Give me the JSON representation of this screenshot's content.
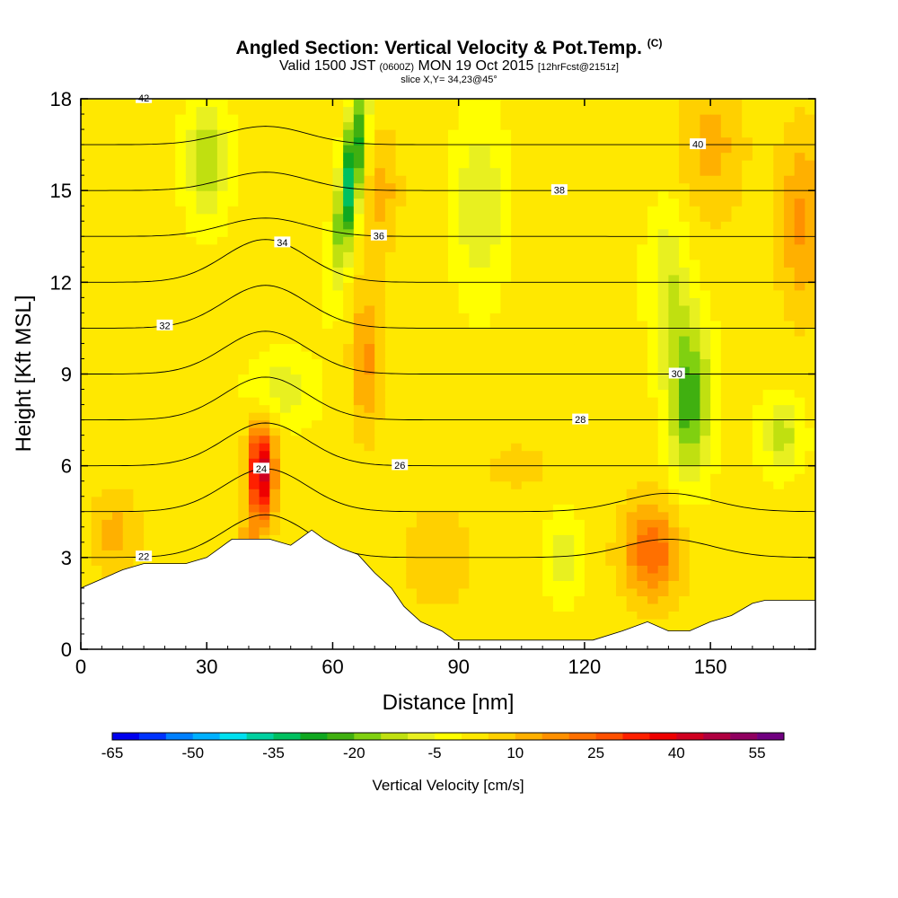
{
  "title": {
    "main": "Angled Section: Vertical Velocity & Pot.Temp.",
    "units": "(C)",
    "valid_prefix": "Valid 1500 JST",
    "valid_z": "(0600Z)",
    "valid_date": "MON 19 Oct 2015",
    "forecast": "[12hrFcst@2151z]",
    "slice": "slice X,Y= 34,23@45°"
  },
  "chart_data": {
    "type": "heatmap",
    "xlabel": "Distance [nm]",
    "ylabel": "Height [Kft MSL]",
    "xlim": [
      0,
      175
    ],
    "ylim": [
      0,
      18
    ],
    "xticks": [
      0,
      30,
      60,
      90,
      120,
      150
    ],
    "yticks": [
      0,
      3,
      6,
      9,
      12,
      15,
      18
    ],
    "colorbar": {
      "title": "Vertical Velocity [cm/s]",
      "min": -65,
      "max": 60,
      "step": 5,
      "labels": [
        -65,
        -50,
        -35,
        -20,
        -5,
        10,
        25,
        40,
        55
      ],
      "colors": [
        "#0000ee",
        "#0033ff",
        "#0080ff",
        "#00b0ff",
        "#00e0f0",
        "#00d0a0",
        "#00c060",
        "#10a820",
        "#40b010",
        "#80d010",
        "#c0e010",
        "#e8f020",
        "#ffff00",
        "#ffe800",
        "#ffd000",
        "#ffb000",
        "#ff9000",
        "#ff7000",
        "#ff5000",
        "#ff2000",
        "#ee0000",
        "#d00020",
        "#b00040",
        "#900060",
        "#700080"
      ]
    },
    "terrain_kft": [
      [
        0,
        2.0
      ],
      [
        5,
        2.3
      ],
      [
        10,
        2.6
      ],
      [
        15,
        2.8
      ],
      [
        20,
        2.8
      ],
      [
        25,
        2.8
      ],
      [
        30,
        3.0
      ],
      [
        33,
        3.3
      ],
      [
        36,
        3.6
      ],
      [
        40,
        3.6
      ],
      [
        45,
        3.6
      ],
      [
        50,
        3.4
      ],
      [
        52,
        3.6
      ],
      [
        55,
        3.9
      ],
      [
        58,
        3.6
      ],
      [
        62,
        3.3
      ],
      [
        66,
        3.1
      ],
      [
        70,
        2.5
      ],
      [
        74,
        2.0
      ],
      [
        77,
        1.4
      ],
      [
        81,
        0.9
      ],
      [
        86,
        0.6
      ],
      [
        89,
        0.3
      ],
      [
        95,
        0.3
      ],
      [
        105,
        0.3
      ],
      [
        115,
        0.3
      ],
      [
        122,
        0.3
      ],
      [
        129,
        0.6
      ],
      [
        135,
        0.9
      ],
      [
        140,
        0.6
      ],
      [
        145,
        0.6
      ],
      [
        150,
        0.9
      ],
      [
        155,
        1.1
      ],
      [
        160,
        1.5
      ],
      [
        163,
        1.6
      ],
      [
        175,
        1.6
      ]
    ],
    "pot_temp_contours": [
      {
        "value": 22,
        "label": "22"
      },
      {
        "value": 24,
        "label": "24"
      },
      {
        "value": 26,
        "label": "26"
      },
      {
        "value": 28,
        "label": "28"
      },
      {
        "value": 30,
        "label": "30"
      },
      {
        "value": 32,
        "label": "32"
      },
      {
        "value": 34,
        "label": "34"
      },
      {
        "value": 36,
        "label": "36"
      },
      {
        "value": 38,
        "label": "38"
      },
      {
        "value": 40,
        "label": "40"
      },
      {
        "value": 42,
        "label": "42"
      }
    ]
  }
}
